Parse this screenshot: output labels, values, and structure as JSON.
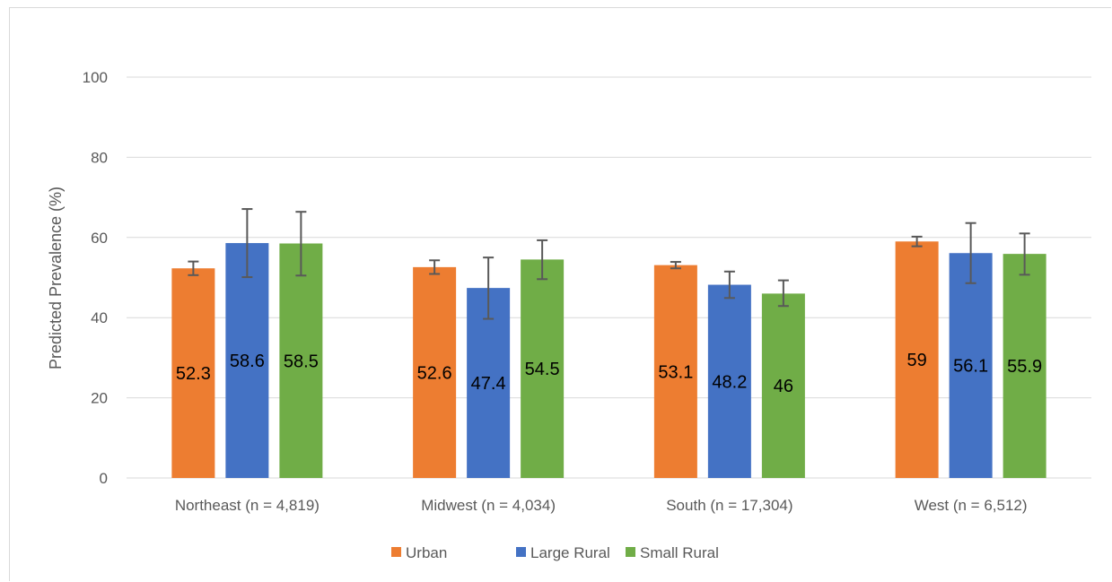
{
  "chart_data": {
    "type": "bar",
    "ylabel": "Predicted Prevalence (%)",
    "xlabel": "",
    "ylim": [
      0,
      100
    ],
    "yticks": [
      0,
      20,
      40,
      60,
      80,
      100
    ],
    "grid": true,
    "legend_position": "bottom",
    "categories": [
      "Northeast (n = 4,819)",
      "Midwest (n = 4,034)",
      "South (n = 17,304)",
      "West (n = 6,512)"
    ],
    "series": [
      {
        "name": "Urban",
        "color": "#ED7D31",
        "values": [
          52.3,
          52.6,
          53.1,
          59
        ],
        "error_low": [
          50.6,
          50.9,
          52.3,
          57.8
        ],
        "error_high": [
          54.0,
          54.3,
          53.9,
          60.2
        ]
      },
      {
        "name": "Large Rural",
        "color": "#4472C4",
        "values": [
          58.6,
          47.4,
          48.2,
          56.1
        ],
        "error_low": [
          50.1,
          39.7,
          44.9,
          48.6
        ],
        "error_high": [
          67.1,
          55.0,
          51.5,
          63.6
        ]
      },
      {
        "name": "Small Rural",
        "color": "#70AD47",
        "values": [
          58.5,
          54.5,
          46,
          55.9
        ],
        "error_low": [
          50.5,
          49.6,
          42.9,
          50.7
        ],
        "error_high": [
          66.4,
          59.3,
          49.3,
          61.0
        ]
      }
    ]
  }
}
